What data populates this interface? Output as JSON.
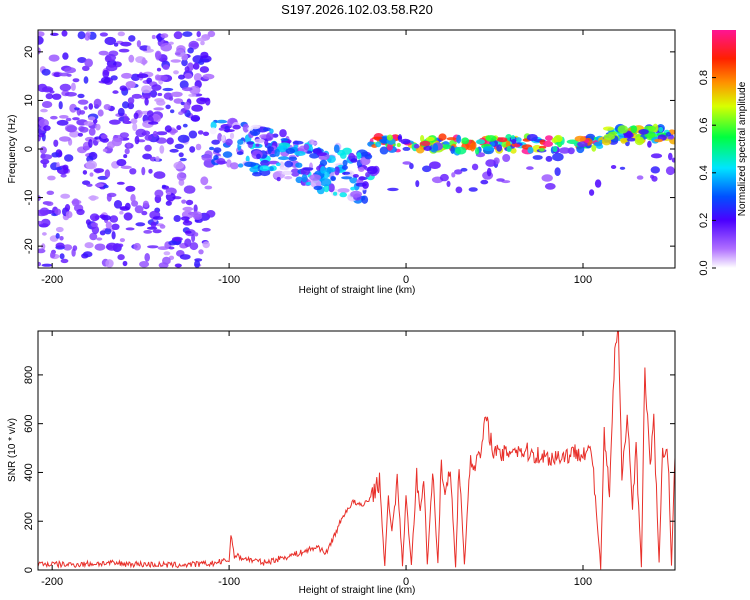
{
  "title": "S197.2026.102.03.58.R20",
  "chart_data": [
    {
      "type": "heatmap",
      "xlabel": "Height of straight line (km)",
      "ylabel": "Frequency (Hz)",
      "xlim": [
        -208,
        152
      ],
      "ylim": [
        -24.5,
        24.5
      ],
      "xticks": [
        -200,
        -100,
        0,
        100
      ],
      "yticks": [
        -20,
        -10,
        0,
        10,
        20
      ],
      "colorbar": {
        "label": "Normalized spectral amplitude",
        "range": [
          0,
          1
        ],
        "ticks": [
          0.0,
          0.2,
          0.4,
          0.6,
          0.8
        ],
        "tick_labels": [
          "0.0",
          "0.2",
          "0.4",
          "0.6",
          "0.8"
        ],
        "colors": [
          "#ffffff",
          "#9b30ff",
          "#0000ff",
          "#00e5ff",
          "#00ff00",
          "#ffff00",
          "#ff8c00",
          "#ff0000",
          "#ff1493"
        ]
      },
      "description_regions": [
        {
          "x_range": [
            -208,
            -110
          ],
          "spread_hz": 24,
          "amplitude": 0.2
        },
        {
          "x_range": [
            -110,
            -20
          ],
          "center_trend_hz": [
            2,
            -6
          ],
          "amplitude": 0.45
        },
        {
          "x_range": [
            -20,
            110
          ],
          "center_hz": 1,
          "amplitude": 0.85
        },
        {
          "x_range": [
            110,
            152
          ],
          "center_hz": 3,
          "amplitude": 0.6
        }
      ]
    },
    {
      "type": "line",
      "xlabel": "Height of straight line (km)",
      "ylabel": "SNR (10 * v/v)",
      "xlim": [
        -208,
        152
      ],
      "ylim": [
        0,
        980
      ],
      "xticks": [
        -200,
        -100,
        0,
        100
      ],
      "yticks": [
        0,
        200,
        400,
        600,
        800
      ],
      "series": [
        {
          "name": "SNR",
          "color": "#e8302a",
          "x": [
            -208,
            -190,
            -170,
            -150,
            -130,
            -110,
            -100,
            -99,
            -97,
            -95,
            -90,
            -80,
            -70,
            -60,
            -50,
            -45,
            -40,
            -35,
            -30,
            -25,
            -20,
            -15,
            -12,
            -10,
            -8,
            -5,
            -2,
            0,
            3,
            6,
            8,
            10,
            12,
            15,
            18,
            20,
            22,
            25,
            28,
            30,
            33,
            36,
            40,
            42,
            45,
            50,
            55,
            60,
            70,
            80,
            90,
            100,
            105,
            110,
            112,
            115,
            118,
            120,
            122,
            125,
            128,
            130,
            133,
            135,
            138,
            140,
            143,
            145,
            148,
            150,
            152
          ],
          "y": [
            25,
            22,
            28,
            24,
            20,
            26,
            40,
            145,
            60,
            55,
            45,
            30,
            50,
            70,
            95,
            70,
            150,
            230,
            280,
            260,
            300,
            360,
            20,
            300,
            150,
            380,
            20,
            300,
            20,
            380,
            240,
            400,
            20,
            410,
            20,
            450,
            300,
            420,
            15,
            440,
            20,
            430,
            450,
            470,
            620,
            480,
            470,
            500,
            480,
            460,
            470,
            490,
            480,
            10,
            560,
            300,
            900,
            960,
            400,
            650,
            250,
            520,
            10,
            830,
            400,
            620,
            20,
            500,
            480,
            20,
            460
          ]
        }
      ]
    }
  ]
}
